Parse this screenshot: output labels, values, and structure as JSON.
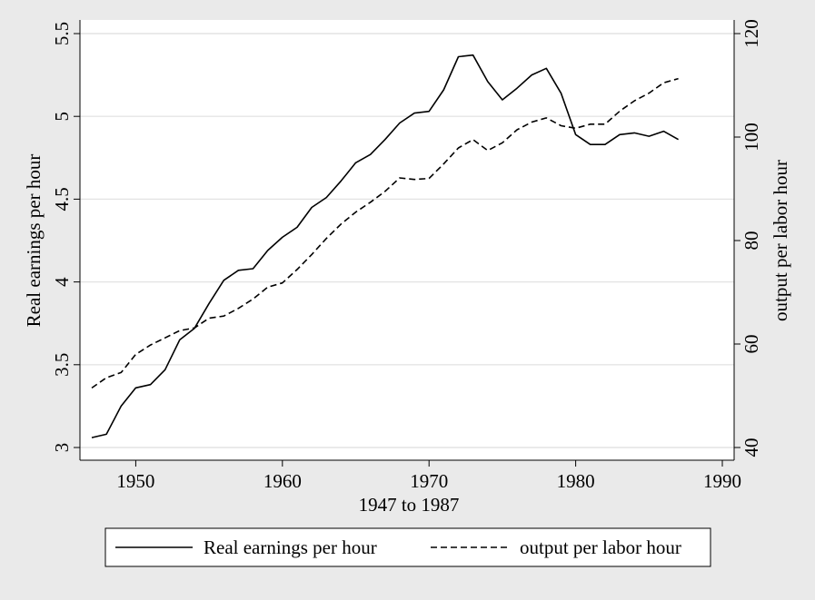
{
  "chart_data": {
    "type": "line",
    "title": "",
    "xlabel": "1947 to 1987",
    "ylabel_left": "Real earnings per hour",
    "ylabel_right": "output per labor hour",
    "xlim": [
      1947,
      1990
    ],
    "ylim_left": [
      3,
      5.5
    ],
    "ylim_right": [
      40,
      120
    ],
    "x_ticks": [
      "1950",
      "1960",
      "1970",
      "1980",
      "1990"
    ],
    "y_ticks_left": [
      "3",
      "3.5",
      "4",
      "4.5",
      "5",
      "5.5"
    ],
    "y_ticks_right": [
      "40",
      "60",
      "80",
      "100",
      "120"
    ],
    "grid": true,
    "legend_position": "bottom",
    "x": [
      1947,
      1948,
      1949,
      1950,
      1951,
      1952,
      1953,
      1954,
      1955,
      1956,
      1957,
      1958,
      1959,
      1960,
      1961,
      1962,
      1963,
      1964,
      1965,
      1966,
      1967,
      1968,
      1969,
      1970,
      1971,
      1972,
      1973,
      1974,
      1975,
      1976,
      1977,
      1978,
      1979,
      1980,
      1981,
      1982,
      1983,
      1984,
      1985,
      1986,
      1987
    ],
    "series": [
      {
        "name": "Real earnings per hour",
        "axis": "left",
        "style": "solid",
        "values": [
          3.06,
          3.08,
          3.25,
          3.36,
          3.38,
          3.47,
          3.65,
          3.72,
          3.87,
          4.01,
          4.07,
          4.08,
          4.19,
          4.27,
          4.33,
          4.45,
          4.51,
          4.61,
          4.72,
          4.77,
          4.86,
          4.96,
          5.02,
          5.03,
          5.16,
          5.36,
          5.37,
          5.21,
          5.1,
          5.17,
          5.25,
          5.29,
          5.14,
          4.89,
          4.83,
          4.83,
          4.89,
          4.9,
          4.88,
          4.91,
          4.86
        ]
      },
      {
        "name": "output per labor hour",
        "axis": "right",
        "style": "dashed",
        "values": [
          51.5,
          53.5,
          54.5,
          58.0,
          59.8,
          61.2,
          62.6,
          63.1,
          65.0,
          65.4,
          66.9,
          68.7,
          71.0,
          71.8,
          74.4,
          77.3,
          80.4,
          83.2,
          85.5,
          87.4,
          89.5,
          92.1,
          91.8,
          92.0,
          94.8,
          97.9,
          99.5,
          97.4,
          98.9,
          101.4,
          102.9,
          103.7,
          102.2,
          101.7,
          102.5,
          102.5,
          105.0,
          107.0,
          108.5,
          110.5,
          111.3
        ]
      }
    ]
  }
}
